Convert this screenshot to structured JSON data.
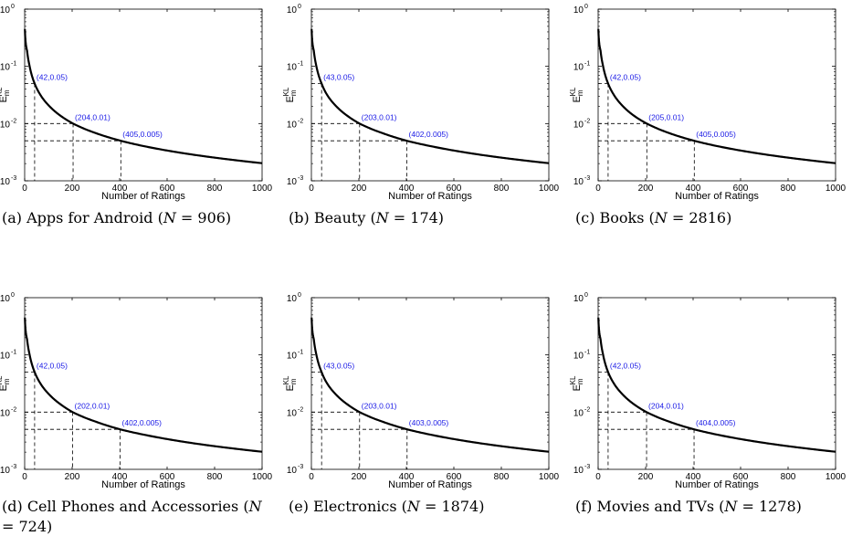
{
  "chart_data": [
    {
      "type": "line",
      "caption_prefix": "(a) Apps for Android (",
      "caption_var": "N",
      "caption_suffix": " = 906)",
      "xlabel": "Number of Ratings",
      "ylabel_main": "E",
      "ylabel_sub": "m",
      "ylabel_sup": "KL",
      "xlim": [
        0,
        1000
      ],
      "ylim": [
        0.001,
        1
      ],
      "yscale": "log",
      "xticks": [
        0,
        200,
        400,
        600,
        800,
        1000
      ],
      "yticks": [
        {
          "base": "10",
          "exp": "-3",
          "value": 0.001
        },
        {
          "base": "10",
          "exp": "-2",
          "value": 0.01
        },
        {
          "base": "10",
          "exp": "-1",
          "value": 0.1
        },
        {
          "base": "10",
          "exp": "0",
          "value": 1
        }
      ],
      "series": [
        {
          "x": [
            1,
            10,
            20,
            42,
            60,
            100,
            150,
            204,
            300,
            405,
            500,
            600,
            700,
            800,
            900,
            1000
          ],
          "y": [
            0.45,
            0.19,
            0.105,
            0.05,
            0.035,
            0.021,
            0.0138,
            0.01,
            0.0068,
            0.005,
            0.00405,
            0.00338,
            0.0029,
            0.00254,
            0.00226,
            0.00203
          ]
        }
      ],
      "annotations": [
        {
          "x": 42,
          "y": 0.05,
          "label": "(42,0.05)"
        },
        {
          "x": 204,
          "y": 0.01,
          "label": "(204,0.01)"
        },
        {
          "x": 405,
          "y": 0.005,
          "label": "(405,0.005)"
        }
      ]
    },
    {
      "type": "line",
      "caption_prefix": "(b) Beauty (",
      "caption_var": "N",
      "caption_suffix": " = 174)",
      "xlabel": "Number of Ratings",
      "ylabel_main": "E",
      "ylabel_sub": "m",
      "ylabel_sup": "KL",
      "xlim": [
        0,
        1000
      ],
      "ylim": [
        0.001,
        1
      ],
      "yscale": "log",
      "xticks": [
        0,
        200,
        400,
        600,
        800,
        1000
      ],
      "yticks": [
        {
          "base": "10",
          "exp": "-3",
          "value": 0.001
        },
        {
          "base": "10",
          "exp": "-2",
          "value": 0.01
        },
        {
          "base": "10",
          "exp": "-1",
          "value": 0.1
        },
        {
          "base": "10",
          "exp": "0",
          "value": 1
        }
      ],
      "series": [
        {
          "x": [
            1,
            10,
            20,
            43,
            60,
            100,
            150,
            203,
            300,
            402,
            500,
            600,
            700,
            800,
            900,
            1000
          ],
          "y": [
            0.45,
            0.19,
            0.105,
            0.05,
            0.035,
            0.021,
            0.0138,
            0.01,
            0.0068,
            0.005,
            0.00405,
            0.00338,
            0.0029,
            0.00254,
            0.00226,
            0.00203
          ]
        }
      ],
      "annotations": [
        {
          "x": 43,
          "y": 0.05,
          "label": "(43,0.05)"
        },
        {
          "x": 203,
          "y": 0.01,
          "label": "(203,0.01)"
        },
        {
          "x": 402,
          "y": 0.005,
          "label": "(402,0.005)"
        }
      ]
    },
    {
      "type": "line",
      "caption_prefix": "(c) Books (",
      "caption_var": "N",
      "caption_suffix": " = 2816)",
      "xlabel": "Number of Ratings",
      "ylabel_main": "E",
      "ylabel_sub": "m",
      "ylabel_sup": "KL",
      "xlim": [
        0,
        1000
      ],
      "ylim": [
        0.001,
        1
      ],
      "yscale": "log",
      "xticks": [
        0,
        200,
        400,
        600,
        800,
        1000
      ],
      "yticks": [
        {
          "base": "10",
          "exp": "-3",
          "value": 0.001
        },
        {
          "base": "10",
          "exp": "-2",
          "value": 0.01
        },
        {
          "base": "10",
          "exp": "-1",
          "value": 0.1
        },
        {
          "base": "10",
          "exp": "0",
          "value": 1
        }
      ],
      "series": [
        {
          "x": [
            1,
            10,
            20,
            42,
            60,
            100,
            150,
            205,
            300,
            405,
            500,
            600,
            700,
            800,
            900,
            1000
          ],
          "y": [
            0.45,
            0.19,
            0.105,
            0.05,
            0.035,
            0.021,
            0.0138,
            0.01,
            0.0068,
            0.005,
            0.00405,
            0.00338,
            0.0029,
            0.00254,
            0.00226,
            0.00203
          ]
        }
      ],
      "annotations": [
        {
          "x": 42,
          "y": 0.05,
          "label": "(42,0.05)"
        },
        {
          "x": 205,
          "y": 0.01,
          "label": "(205,0.01)"
        },
        {
          "x": 405,
          "y": 0.005,
          "label": "(405,0.005)"
        }
      ]
    },
    {
      "type": "line",
      "caption_prefix": "(d) Cell Phones and Accessories (",
      "caption_var": "N",
      "caption_suffix": " = 724)",
      "xlabel": "Number of Ratings",
      "ylabel_main": "E",
      "ylabel_sub": "m",
      "ylabel_sup": "KL",
      "xlim": [
        0,
        1000
      ],
      "ylim": [
        0.001,
        1
      ],
      "yscale": "log",
      "xticks": [
        0,
        200,
        400,
        600,
        800,
        1000
      ],
      "yticks": [
        {
          "base": "10",
          "exp": "-3",
          "value": 0.001
        },
        {
          "base": "10",
          "exp": "-2",
          "value": 0.01
        },
        {
          "base": "10",
          "exp": "-1",
          "value": 0.1
        },
        {
          "base": "10",
          "exp": "0",
          "value": 1
        }
      ],
      "series": [
        {
          "x": [
            1,
            10,
            20,
            42,
            60,
            100,
            150,
            202,
            300,
            402,
            500,
            600,
            700,
            800,
            900,
            1000
          ],
          "y": [
            0.45,
            0.19,
            0.105,
            0.05,
            0.035,
            0.021,
            0.0138,
            0.01,
            0.0068,
            0.005,
            0.00405,
            0.00338,
            0.0029,
            0.00254,
            0.00226,
            0.00203
          ]
        }
      ],
      "annotations": [
        {
          "x": 42,
          "y": 0.05,
          "label": "(42,0.05)"
        },
        {
          "x": 202,
          "y": 0.01,
          "label": "(202,0.01)"
        },
        {
          "x": 402,
          "y": 0.005,
          "label": "(402,0.005)"
        }
      ]
    },
    {
      "type": "line",
      "caption_prefix": "(e) Electronics (",
      "caption_var": "N",
      "caption_suffix": " = 1874)",
      "xlabel": "Number of Ratings",
      "ylabel_main": "E",
      "ylabel_sub": "m",
      "ylabel_sup": "KL",
      "xlim": [
        0,
        1000
      ],
      "ylim": [
        0.001,
        1
      ],
      "yscale": "log",
      "xticks": [
        0,
        200,
        400,
        600,
        800,
        1000
      ],
      "yticks": [
        {
          "base": "10",
          "exp": "-3",
          "value": 0.001
        },
        {
          "base": "10",
          "exp": "-2",
          "value": 0.01
        },
        {
          "base": "10",
          "exp": "-1",
          "value": 0.1
        },
        {
          "base": "10",
          "exp": "0",
          "value": 1
        }
      ],
      "series": [
        {
          "x": [
            1,
            10,
            20,
            43,
            60,
            100,
            150,
            203,
            300,
            403,
            500,
            600,
            700,
            800,
            900,
            1000
          ],
          "y": [
            0.45,
            0.19,
            0.105,
            0.05,
            0.035,
            0.021,
            0.0138,
            0.01,
            0.0068,
            0.005,
            0.00405,
            0.00338,
            0.0029,
            0.00254,
            0.00226,
            0.00203
          ]
        }
      ],
      "annotations": [
        {
          "x": 43,
          "y": 0.05,
          "label": "(43,0.05)"
        },
        {
          "x": 203,
          "y": 0.01,
          "label": "(203,0.01)"
        },
        {
          "x": 403,
          "y": 0.005,
          "label": "(403,0.005)"
        }
      ]
    },
    {
      "type": "line",
      "caption_prefix": "(f) Movies and TVs (",
      "caption_var": "N",
      "caption_suffix": " = 1278)",
      "xlabel": "Number of Ratings",
      "ylabel_main": "E",
      "ylabel_sub": "m",
      "ylabel_sup": "KL",
      "xlim": [
        0,
        1000
      ],
      "ylim": [
        0.001,
        1
      ],
      "yscale": "log",
      "xticks": [
        0,
        200,
        400,
        600,
        800,
        1000
      ],
      "yticks": [
        {
          "base": "10",
          "exp": "-3",
          "value": 0.001
        },
        {
          "base": "10",
          "exp": "-2",
          "value": 0.01
        },
        {
          "base": "10",
          "exp": "-1",
          "value": 0.1
        },
        {
          "base": "10",
          "exp": "0",
          "value": 1
        }
      ],
      "series": [
        {
          "x": [
            1,
            10,
            20,
            42,
            60,
            100,
            150,
            204,
            300,
            404,
            500,
            600,
            700,
            800,
            900,
            1000
          ],
          "y": [
            0.45,
            0.19,
            0.105,
            0.05,
            0.035,
            0.021,
            0.0138,
            0.01,
            0.0068,
            0.005,
            0.00405,
            0.00338,
            0.0029,
            0.00254,
            0.00226,
            0.00203
          ]
        }
      ],
      "annotations": [
        {
          "x": 42,
          "y": 0.05,
          "label": "(42,0.05)"
        },
        {
          "x": 204,
          "y": 0.01,
          "label": "(204,0.01)"
        },
        {
          "x": 404,
          "y": 0.005,
          "label": "(404,0.005)"
        }
      ]
    }
  ],
  "colors": {
    "curve": "#000000",
    "annotation": "#1a1ae6",
    "guide": "#000000"
  }
}
